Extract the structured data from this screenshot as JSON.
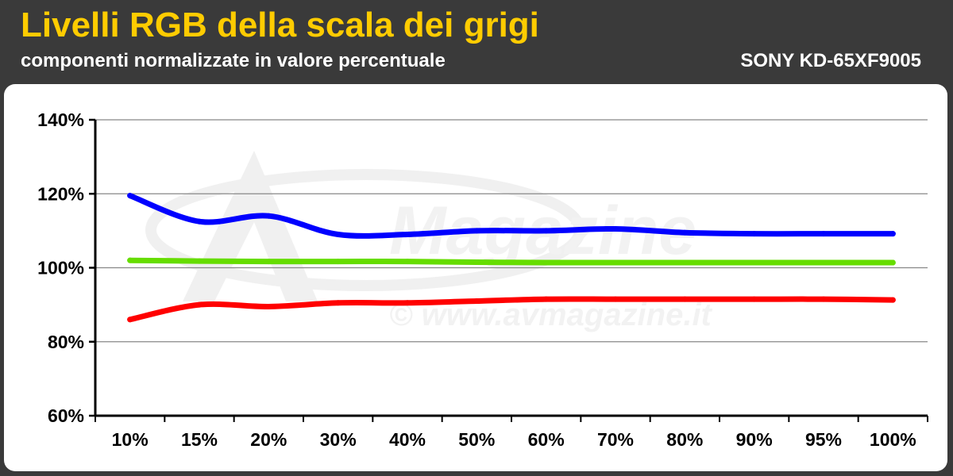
{
  "header": {
    "title": "Livelli RGB della scala dei grigi",
    "subtitle": "componenti normalizzate in valore percentuale",
    "model": "SONY KD-65XF9005"
  },
  "watermark": {
    "brand": "Magazine",
    "url": "© www.avmagazine.it"
  },
  "colors": {
    "background": "#3a3a3a",
    "title": "#ffcc00",
    "panel": "#ffffff",
    "red": "#ff0000",
    "green": "#66dd00",
    "blue": "#0000ff"
  },
  "chart_data": {
    "type": "line",
    "title": "Livelli RGB della scala dei grigi",
    "subtitle": "componenti normalizzate in valore percentuale",
    "categories": [
      "10%",
      "15%",
      "20%",
      "30%",
      "40%",
      "50%",
      "60%",
      "70%",
      "80%",
      "90%",
      "95%",
      "100%"
    ],
    "y_ticks": [
      "60%",
      "80%",
      "100%",
      "120%",
      "140%"
    ],
    "ylim": [
      60,
      140
    ],
    "grid": true,
    "series": [
      {
        "color": "#0000ff",
        "values": [
          119.5,
          112.5,
          114,
          109,
          109,
          110,
          110,
          110.5,
          109.5,
          109.2,
          109.2,
          109.2
        ]
      },
      {
        "color": "#66dd00",
        "values": [
          102,
          101.8,
          101.7,
          101.7,
          101.7,
          101.5,
          101.4,
          101.4,
          101.4,
          101.4,
          101.4,
          101.4
        ]
      },
      {
        "color": "#ff0000",
        "values": [
          86,
          90,
          89.5,
          90.5,
          90.5,
          91,
          91.5,
          91.5,
          91.5,
          91.5,
          91.5,
          91.3
        ]
      }
    ]
  }
}
